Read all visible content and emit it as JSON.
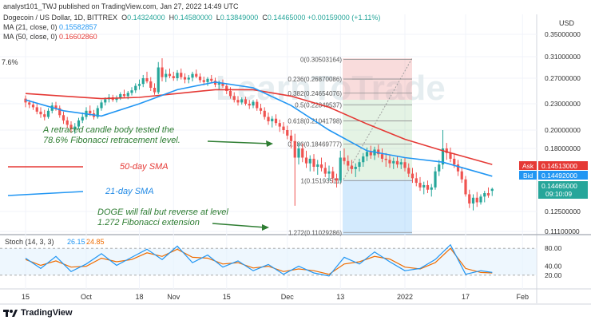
{
  "header": {
    "publisher_line": "analyst101_TWJ published on TradingView.com, Jan 27, 2022 14:49 UTC",
    "symbol_line": "Dogecoin / US Dollar, 1D, BITTREX",
    "ohlc": {
      "O": "0.14324000",
      "H": "0.14580000",
      "L": "0.13849000",
      "C": "0.14465000",
      "change": "+0.00159000 (+1.11%)"
    },
    "ma21_label": "MA (21, close, 0)",
    "ma21_value": "0.15582857",
    "ma50_label": "MA (50, close, 0)",
    "ma50_value": "0.16602860",
    "left_fragment": "7.6%"
  },
  "currency": "USD",
  "price_axis": {
    "ticks": [
      {
        "value": 0.35,
        "label": "0.35000000"
      },
      {
        "value": 0.31,
        "label": "0.31000000"
      },
      {
        "value": 0.27,
        "label": "0.27000000"
      },
      {
        "value": 0.23,
        "label": "0.23000000"
      },
      {
        "value": 0.2,
        "label": "0.20000000"
      },
      {
        "value": 0.18,
        "label": "0.18000000"
      },
      {
        "value": 0.125,
        "label": "0.12500000"
      },
      {
        "value": 0.111,
        "label": "0.11100000"
      }
    ]
  },
  "price_tags": {
    "ask": {
      "label": "Ask",
      "value": "0.14513000",
      "color": "#e53935"
    },
    "bid": {
      "label": "Bid",
      "value": "0.14492000",
      "color": "#2196f3"
    },
    "last": {
      "value": "0.14465000",
      "countdown": "09:10:09",
      "color": "#26a69a"
    }
  },
  "time_axis": {
    "ticks": [
      {
        "day": 0,
        "label": "15"
      },
      {
        "day": 16,
        "label": "Oct"
      },
      {
        "day": 30,
        "label": "18"
      },
      {
        "day": 39,
        "label": "Nov"
      },
      {
        "day": 53,
        "label": "15"
      },
      {
        "day": 69,
        "label": "Dec"
      },
      {
        "day": 83,
        "label": "13"
      },
      {
        "day": 100,
        "label": "2022"
      },
      {
        "day": 116,
        "label": "17"
      },
      {
        "day": 131,
        "label": "Feb"
      }
    ]
  },
  "fibonacci": {
    "levels": [
      {
        "ratio": "0",
        "price": "0.30503164",
        "value": 0.30503164
      },
      {
        "ratio": "0.236",
        "price": "0.26870086",
        "value": 0.26870086
      },
      {
        "ratio": "0.382",
        "price": "0.24654076",
        "value": 0.24654076
      },
      {
        "ratio": "0.5",
        "price": "0.22849537",
        "value": 0.22849537
      },
      {
        "ratio": "0.618",
        "price": "0.21041798",
        "value": 0.21041798
      },
      {
        "ratio": "0.786",
        "price": "0.18469777",
        "value": 0.18469777
      },
      {
        "ratio": "1",
        "price": "0.15193511",
        "value": 0.15193511
      },
      {
        "ratio": "1.272",
        "price": "0.11029286",
        "value": 0.11029286
      }
    ]
  },
  "annotations": {
    "retrace_note_line1": "A retraced candle body tested the",
    "retrace_note_line2": "78.6% Fibonacci retracement level.",
    "sma50_label": "50-day SMA",
    "sma21_label": "21-day SMA",
    "doge_note_line1": "DOGE will  fall but reverse at level",
    "doge_note_line2": "1.272 Fibonacci extension",
    "watermark": "LearnToTrade"
  },
  "stoch": {
    "label": "Stoch (14, 3, 3)",
    "k_value": "26.15",
    "d_value": "24.85",
    "ticks": [
      {
        "value": 80,
        "label": "80.00"
      },
      {
        "value": 40,
        "label": "40.00"
      },
      {
        "value": 20,
        "label": "20.00"
      }
    ]
  },
  "footer": {
    "brand": "TradingView"
  },
  "colors": {
    "up": "#26a69a",
    "down": "#ef5350",
    "ma21": "#2196f3",
    "ma50": "#e53935",
    "stoch_k": "#2196f3",
    "stoch_d": "#ef6c00",
    "annotation": "#2e7d32"
  },
  "chart_data": {
    "type": "candlestick",
    "x_unit": "days from Sep 15, 2021",
    "ylim": [
      0.111,
      0.35
    ],
    "candles": [
      [
        0,
        0.238,
        0.243,
        0.226,
        0.232
      ],
      [
        1,
        0.232,
        0.236,
        0.225,
        0.229
      ],
      [
        2,
        0.229,
        0.234,
        0.223,
        0.226
      ],
      [
        3,
        0.226,
        0.231,
        0.218,
        0.221
      ],
      [
        4,
        0.221,
        0.226,
        0.214,
        0.218
      ],
      [
        5,
        0.218,
        0.223,
        0.211,
        0.215
      ],
      [
        6,
        0.215,
        0.225,
        0.213,
        0.222
      ],
      [
        7,
        0.222,
        0.232,
        0.219,
        0.228
      ],
      [
        8,
        0.228,
        0.233,
        0.222,
        0.225
      ],
      [
        9,
        0.225,
        0.228,
        0.214,
        0.217
      ],
      [
        10,
        0.217,
        0.221,
        0.207,
        0.211
      ],
      [
        11,
        0.211,
        0.215,
        0.202,
        0.206
      ],
      [
        12,
        0.206,
        0.21,
        0.197,
        0.201
      ],
      [
        13,
        0.201,
        0.208,
        0.196,
        0.204
      ],
      [
        14,
        0.204,
        0.214,
        0.201,
        0.211
      ],
      [
        15,
        0.211,
        0.22,
        0.208,
        0.215
      ],
      [
        16,
        0.215,
        0.226,
        0.212,
        0.222
      ],
      [
        17,
        0.222,
        0.228,
        0.216,
        0.219
      ],
      [
        18,
        0.219,
        0.223,
        0.212,
        0.215
      ],
      [
        19,
        0.215,
        0.228,
        0.213,
        0.225
      ],
      [
        20,
        0.225,
        0.236,
        0.222,
        0.232
      ],
      [
        21,
        0.232,
        0.24,
        0.228,
        0.237
      ],
      [
        22,
        0.237,
        0.245,
        0.232,
        0.24
      ],
      [
        23,
        0.24,
        0.244,
        0.233,
        0.236
      ],
      [
        24,
        0.236,
        0.243,
        0.232,
        0.239
      ],
      [
        25,
        0.239,
        0.248,
        0.236,
        0.245
      ],
      [
        26,
        0.245,
        0.252,
        0.239,
        0.242
      ],
      [
        27,
        0.242,
        0.25,
        0.237,
        0.247
      ],
      [
        28,
        0.247,
        0.256,
        0.243,
        0.251
      ],
      [
        29,
        0.251,
        0.262,
        0.247,
        0.258
      ],
      [
        30,
        0.258,
        0.268,
        0.252,
        0.261
      ],
      [
        31,
        0.261,
        0.276,
        0.256,
        0.27
      ],
      [
        32,
        0.27,
        0.282,
        0.262,
        0.265
      ],
      [
        33,
        0.265,
        0.272,
        0.25,
        0.255
      ],
      [
        34,
        0.255,
        0.262,
        0.244,
        0.248
      ],
      [
        35,
        0.248,
        0.3,
        0.245,
        0.29
      ],
      [
        36,
        0.29,
        0.307,
        0.265,
        0.272
      ],
      [
        37,
        0.272,
        0.286,
        0.264,
        0.278
      ],
      [
        38,
        0.278,
        0.288,
        0.27,
        0.274
      ],
      [
        39,
        0.274,
        0.282,
        0.266,
        0.27
      ],
      [
        40,
        0.27,
        0.285,
        0.266,
        0.28
      ],
      [
        41,
        0.28,
        0.288,
        0.268,
        0.272
      ],
      [
        42,
        0.272,
        0.279,
        0.262,
        0.268
      ],
      [
        43,
        0.268,
        0.276,
        0.262,
        0.271
      ],
      [
        44,
        0.271,
        0.282,
        0.265,
        0.278
      ],
      [
        45,
        0.278,
        0.286,
        0.27,
        0.273
      ],
      [
        46,
        0.273,
        0.279,
        0.263,
        0.267
      ],
      [
        47,
        0.267,
        0.273,
        0.259,
        0.264
      ],
      [
        48,
        0.264,
        0.272,
        0.258,
        0.269
      ],
      [
        49,
        0.269,
        0.276,
        0.262,
        0.266
      ],
      [
        50,
        0.266,
        0.271,
        0.256,
        0.26
      ],
      [
        51,
        0.26,
        0.266,
        0.252,
        0.262
      ],
      [
        52,
        0.262,
        0.268,
        0.255,
        0.258
      ],
      [
        53,
        0.258,
        0.262,
        0.245,
        0.25
      ],
      [
        54,
        0.25,
        0.256,
        0.238,
        0.242
      ],
      [
        55,
        0.242,
        0.248,
        0.232,
        0.236
      ],
      [
        56,
        0.236,
        0.242,
        0.228,
        0.232
      ],
      [
        57,
        0.232,
        0.24,
        0.229,
        0.237
      ],
      [
        58,
        0.237,
        0.241,
        0.228,
        0.23
      ],
      [
        59,
        0.23,
        0.236,
        0.224,
        0.228
      ],
      [
        60,
        0.228,
        0.236,
        0.225,
        0.233
      ],
      [
        61,
        0.233,
        0.237,
        0.222,
        0.225
      ],
      [
        62,
        0.225,
        0.23,
        0.218,
        0.222
      ],
      [
        63,
        0.222,
        0.226,
        0.212,
        0.215
      ],
      [
        64,
        0.215,
        0.22,
        0.206,
        0.21
      ],
      [
        65,
        0.21,
        0.216,
        0.203,
        0.213
      ],
      [
        66,
        0.213,
        0.218,
        0.205,
        0.208
      ],
      [
        67,
        0.208,
        0.212,
        0.198,
        0.204
      ],
      [
        68,
        0.204,
        0.209,
        0.196,
        0.2
      ],
      [
        69,
        0.2,
        0.205,
        0.19,
        0.194
      ],
      [
        70,
        0.194,
        0.2,
        0.18,
        0.188
      ],
      [
        71,
        0.188,
        0.196,
        0.13,
        0.172
      ],
      [
        72,
        0.172,
        0.186,
        0.166,
        0.18
      ],
      [
        73,
        0.18,
        0.185,
        0.168,
        0.172
      ],
      [
        74,
        0.172,
        0.178,
        0.163,
        0.167
      ],
      [
        75,
        0.167,
        0.174,
        0.16,
        0.171
      ],
      [
        76,
        0.171,
        0.175,
        0.16,
        0.164
      ],
      [
        77,
        0.164,
        0.17,
        0.157,
        0.166
      ],
      [
        78,
        0.166,
        0.172,
        0.16,
        0.163
      ],
      [
        79,
        0.163,
        0.168,
        0.155,
        0.158
      ],
      [
        80,
        0.158,
        0.165,
        0.152,
        0.16
      ],
      [
        81,
        0.16,
        0.164,
        0.15,
        0.154
      ],
      [
        82,
        0.154,
        0.158,
        0.146,
        0.152
      ],
      [
        83,
        0.152,
        0.178,
        0.15,
        0.172
      ],
      [
        84,
        0.172,
        0.18,
        0.166,
        0.169
      ],
      [
        85,
        0.169,
        0.174,
        0.161,
        0.165
      ],
      [
        86,
        0.165,
        0.17,
        0.158,
        0.162
      ],
      [
        87,
        0.162,
        0.167,
        0.155,
        0.164
      ],
      [
        88,
        0.164,
        0.171,
        0.16,
        0.168
      ],
      [
        89,
        0.168,
        0.176,
        0.164,
        0.173
      ],
      [
        90,
        0.173,
        0.181,
        0.169,
        0.177
      ],
      [
        91,
        0.177,
        0.183,
        0.171,
        0.174
      ],
      [
        92,
        0.174,
        0.182,
        0.17,
        0.179
      ],
      [
        93,
        0.179,
        0.184,
        0.172,
        0.175
      ],
      [
        94,
        0.175,
        0.18,
        0.168,
        0.171
      ],
      [
        95,
        0.171,
        0.176,
        0.164,
        0.17
      ],
      [
        96,
        0.17,
        0.174,
        0.163,
        0.167
      ],
      [
        97,
        0.167,
        0.172,
        0.162,
        0.169
      ],
      [
        98,
        0.169,
        0.173,
        0.163,
        0.166
      ],
      [
        99,
        0.166,
        0.171,
        0.162,
        0.168
      ],
      [
        100,
        0.168,
        0.172,
        0.16,
        0.163
      ],
      [
        101,
        0.163,
        0.167,
        0.155,
        0.158
      ],
      [
        102,
        0.158,
        0.163,
        0.15,
        0.154
      ],
      [
        103,
        0.154,
        0.159,
        0.147,
        0.15
      ],
      [
        104,
        0.15,
        0.155,
        0.143,
        0.146
      ],
      [
        105,
        0.146,
        0.151,
        0.14,
        0.148
      ],
      [
        106,
        0.148,
        0.152,
        0.141,
        0.144
      ],
      [
        107,
        0.144,
        0.149,
        0.138,
        0.146
      ],
      [
        108,
        0.146,
        0.164,
        0.144,
        0.16
      ],
      [
        109,
        0.16,
        0.17,
        0.156,
        0.166
      ],
      [
        110,
        0.166,
        0.2,
        0.162,
        0.18
      ],
      [
        111,
        0.18,
        0.186,
        0.17,
        0.176
      ],
      [
        112,
        0.176,
        0.181,
        0.168,
        0.171
      ],
      [
        113,
        0.171,
        0.176,
        0.163,
        0.166
      ],
      [
        114,
        0.166,
        0.17,
        0.156,
        0.16
      ],
      [
        115,
        0.16,
        0.164,
        0.15,
        0.153
      ],
      [
        116,
        0.153,
        0.156,
        0.138,
        0.14
      ],
      [
        117,
        0.14,
        0.144,
        0.128,
        0.132
      ],
      [
        118,
        0.132,
        0.14,
        0.126,
        0.137
      ],
      [
        119,
        0.137,
        0.142,
        0.129,
        0.133
      ],
      [
        120,
        0.133,
        0.14,
        0.131,
        0.138
      ],
      [
        121,
        0.138,
        0.143,
        0.133,
        0.141
      ],
      [
        122,
        0.141,
        0.146,
        0.137,
        0.139
      ],
      [
        123,
        0.143,
        0.1458,
        0.1385,
        0.1447
      ]
    ],
    "ma21": {
      "x": [
        0,
        10,
        20,
        30,
        40,
        50,
        60,
        70,
        80,
        90,
        100,
        110,
        123
      ],
      "y": [
        0.236,
        0.222,
        0.216,
        0.23,
        0.252,
        0.264,
        0.255,
        0.228,
        0.2,
        0.178,
        0.172,
        0.168,
        0.1558
      ]
    },
    "ma50": {
      "x": [
        0,
        10,
        20,
        30,
        40,
        50,
        60,
        70,
        80,
        90,
        100,
        110,
        123
      ],
      "y": [
        0.246,
        0.242,
        0.238,
        0.24,
        0.246,
        0.252,
        0.252,
        0.242,
        0.226,
        0.207,
        0.19,
        0.178,
        0.166
      ]
    },
    "stoch_k": {
      "x": [
        0,
        4,
        8,
        12,
        16,
        20,
        24,
        28,
        32,
        36,
        40,
        44,
        48,
        52,
        56,
        60,
        64,
        68,
        72,
        76,
        80,
        84,
        88,
        92,
        96,
        100,
        104,
        108,
        112,
        116,
        120,
        123
      ],
      "y": [
        58,
        35,
        62,
        28,
        45,
        68,
        42,
        60,
        78,
        55,
        85,
        48,
        65,
        38,
        52,
        30,
        44,
        22,
        40,
        25,
        18,
        60,
        45,
        72,
        50,
        30,
        35,
        55,
        88,
        22,
        30,
        26
      ]
    },
    "stoch_d": {
      "x": [
        0,
        4,
        8,
        12,
        16,
        20,
        24,
        28,
        32,
        36,
        40,
        44,
        48,
        52,
        56,
        60,
        64,
        68,
        72,
        76,
        80,
        84,
        88,
        92,
        96,
        100,
        104,
        108,
        112,
        116,
        120,
        123
      ],
      "y": [
        55,
        42,
        52,
        38,
        40,
        58,
        50,
        55,
        70,
        62,
        78,
        60,
        58,
        45,
        48,
        36,
        40,
        28,
        34,
        30,
        22,
        45,
        50,
        62,
        56,
        38,
        34,
        48,
        80,
        35,
        26,
        25
      ]
    }
  }
}
